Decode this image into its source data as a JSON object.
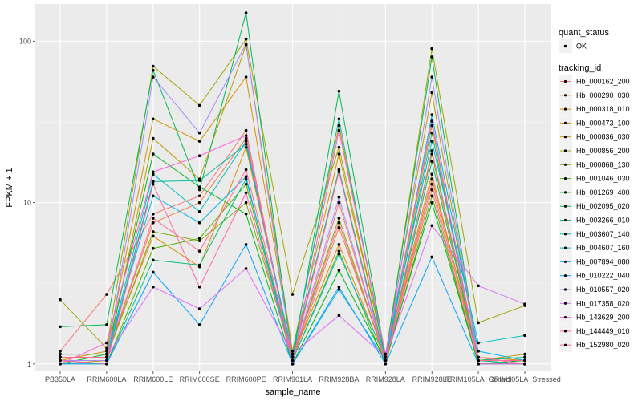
{
  "chart_data": {
    "type": "line",
    "xlabel": "sample_name",
    "ylabel": "FPKM + 1",
    "y_scale": "log10",
    "ylim": [
      0.9,
      170
    ],
    "y_ticks": [
      1,
      10,
      100
    ],
    "y_tick_labels": [
      "1",
      "10",
      "100"
    ],
    "categories": [
      "PB350LA",
      "RRIM600LA",
      "RRIM600LE",
      "RRIM600SE",
      "RRIM600PE",
      "RRIM901LA",
      "RRIM928BA",
      "RRIM928LA",
      "RRIM928LE",
      "RRIM105LA_Control",
      "RRIM105LA_Stressed"
    ],
    "legend_shape": {
      "title": "quant_status",
      "items": [
        "OK"
      ]
    },
    "legend_title": "tracking_id",
    "background": "#ebebeb",
    "grid": true,
    "legend_position": "right",
    "series": [
      {
        "name": "Hb_000162_200",
        "color": "#F8766D",
        "values": [
          1.2,
          2.7,
          8.5,
          11.0,
          28.0,
          1.0,
          10.0,
          1.05,
          12.0,
          1.0,
          1.05
        ]
      },
      {
        "name": "Hb_000290_030",
        "color": "#EF7F47",
        "values": [
          1.1,
          1.1,
          7.5,
          10.0,
          25.0,
          1.05,
          7.0,
          1.1,
          15.0,
          1.05,
          1.1
        ]
      },
      {
        "name": "Hb_000318_010",
        "color": "#E28A00",
        "values": [
          1.15,
          1.15,
          6.2,
          4.0,
          22.0,
          1.1,
          5.5,
          1.05,
          14.0,
          1.1,
          1.05
        ]
      },
      {
        "name": "Hb_000473_100",
        "color": "#D19300",
        "values": [
          1.05,
          1.2,
          33.0,
          24.0,
          60.0,
          1.15,
          20.0,
          1.1,
          30.0,
          1.0,
          1.0
        ]
      },
      {
        "name": "Hb_000836_030",
        "color": "#BC9D00",
        "values": [
          1.0,
          1.05,
          25.0,
          14.0,
          95.0,
          1.2,
          30.0,
          1.15,
          48.0,
          1.05,
          1.15
        ]
      },
      {
        "name": "Hb_000856_200",
        "color": "#A3A500",
        "values": [
          2.5,
          1.25,
          70.0,
          40.0,
          103.0,
          2.7,
          22.0,
          1.1,
          90.0,
          1.8,
          2.3
        ]
      },
      {
        "name": "Hb_000868_130",
        "color": "#83AD00",
        "values": [
          1.1,
          1.1,
          6.6,
          5.8,
          10.0,
          1.1,
          8.0,
          1.05,
          20.0,
          1.05,
          1.05
        ]
      },
      {
        "name": "Hb_001046_030",
        "color": "#4FB300",
        "values": [
          1.05,
          1.0,
          5.2,
          6.0,
          13.0,
          1.05,
          5.0,
          1.0,
          11.0,
          1.0,
          1.0
        ]
      },
      {
        "name": "Hb_001269_400",
        "color": "#00B81F",
        "values": [
          1.0,
          1.15,
          20.0,
          12.5,
          8.5,
          1.0,
          3.8,
          1.05,
          10.0,
          1.0,
          1.05
        ]
      },
      {
        "name": "Hb_002095_020",
        "color": "#00BB55",
        "values": [
          1.7,
          1.75,
          66.0,
          12.0,
          150.0,
          1.05,
          49.0,
          1.1,
          80.0,
          1.05,
          1.0
        ]
      },
      {
        "name": "Hb_003266_010",
        "color": "#00BE7D",
        "values": [
          1.0,
          1.0,
          4.4,
          4.1,
          14.0,
          1.1,
          16.0,
          1.05,
          18.0,
          1.05,
          1.0
        ]
      },
      {
        "name": "Hb_003607_140",
        "color": "#00C0A3",
        "values": [
          1.05,
          1.05,
          13.5,
          13.7,
          23.0,
          1.15,
          33.0,
          1.05,
          27.0,
          1.05,
          1.1
        ]
      },
      {
        "name": "Hb_004607_160",
        "color": "#00BFC4",
        "values": [
          1.1,
          1.1,
          15.0,
          8.8,
          24.0,
          1.05,
          4.8,
          1.1,
          24.0,
          1.35,
          1.5
        ]
      },
      {
        "name": "Hb_007894_080",
        "color": "#00B6EB",
        "values": [
          1.15,
          1.15,
          11.0,
          7.5,
          14.5,
          1.0,
          2.9,
          1.05,
          35.0,
          1.2,
          1.05
        ]
      },
      {
        "name": "Hb_010222_040",
        "color": "#06A4FF",
        "values": [
          1.0,
          1.0,
          3.7,
          1.75,
          5.5,
          1.0,
          3.0,
          1.0,
          4.6,
          1.0,
          1.0
        ]
      },
      {
        "name": "Hb_010557_020",
        "color": "#A58AFF",
        "values": [
          1.05,
          1.05,
          60.0,
          27.0,
          96.0,
          1.05,
          10.8,
          1.05,
          60.0,
          1.05,
          1.05
        ]
      },
      {
        "name": "Hb_017358_020",
        "color": "#DF70F8",
        "values": [
          1.1,
          1.1,
          3.0,
          2.2,
          3.9,
          1.15,
          2.0,
          1.1,
          7.2,
          3.05,
          2.35
        ]
      },
      {
        "name": "Hb_143629_200",
        "color": "#FB61D7",
        "values": [
          1.0,
          1.35,
          15.5,
          19.5,
          26.0,
          1.0,
          28.0,
          1.15,
          32.0,
          1.0,
          1.0
        ]
      },
      {
        "name": "Hb_144449_010",
        "color": "#FF66A8",
        "values": [
          1.05,
          1.0,
          13.0,
          3.0,
          11.5,
          1.05,
          15.5,
          1.0,
          21.0,
          1.1,
          1.0
        ]
      },
      {
        "name": "Hb_152980_020",
        "color": "#FF6C91",
        "values": [
          1.1,
          1.1,
          8.0,
          5.0,
          16.0,
          1.1,
          7.5,
          1.05,
          13.0,
          1.05,
          1.05
        ]
      }
    ]
  }
}
